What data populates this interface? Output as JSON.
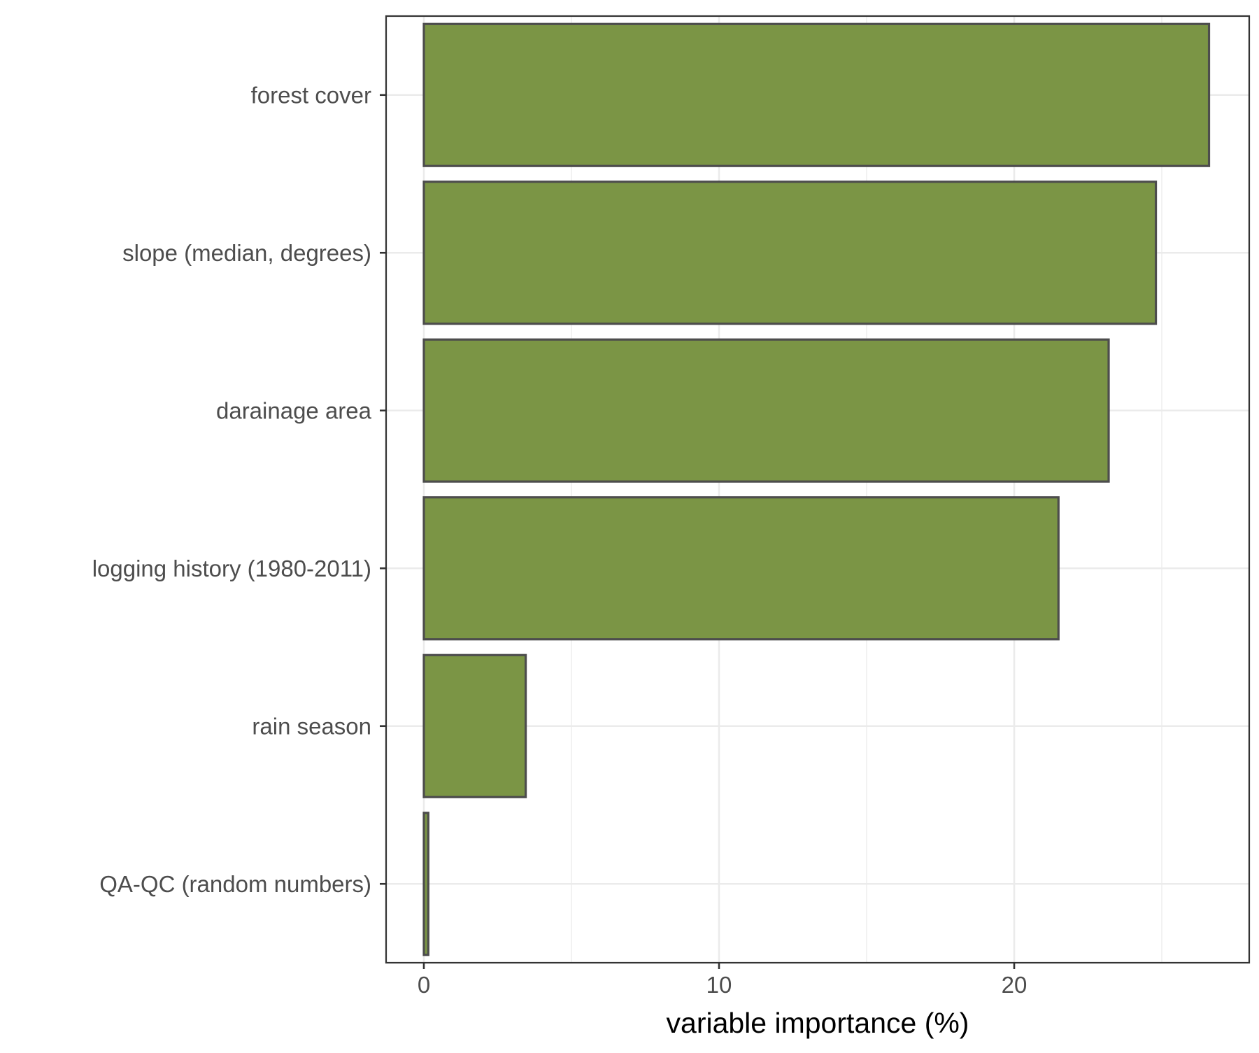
{
  "chart_data": {
    "type": "bar",
    "orientation": "horizontal",
    "categories": [
      "forest cover",
      "slope (median, degrees)",
      "darainage area",
      "logging history (1980-2011)",
      "rain season",
      "QA-QC (random numbers)"
    ],
    "values": [
      26.6,
      24.8,
      23.2,
      21.5,
      3.45,
      0.15
    ],
    "xlabel": "variable importance (%)",
    "ylabel": "",
    "xlim": [
      -1.3,
      27.9
    ],
    "x_ticks": [
      "0",
      "10",
      "20"
    ],
    "x_tick_values": [
      0,
      10,
      20
    ],
    "grid": true,
    "bar_fill": "#7b9545",
    "bar_stroke": "#4d4d4d",
    "gridline_color": "#ebebeb",
    "panel_border_color": "#333333"
  }
}
